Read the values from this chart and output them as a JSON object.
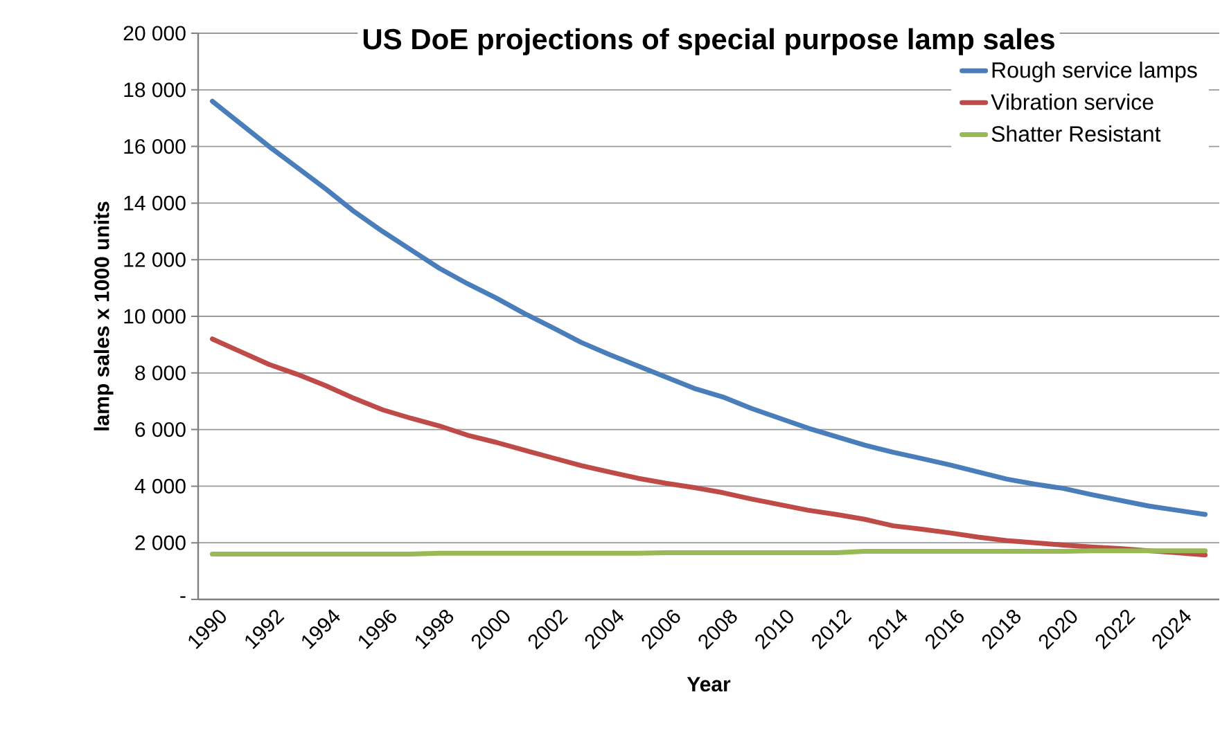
{
  "chart_data": {
    "type": "line",
    "title": "US DoE projections of special purpose lamp sales",
    "xlabel": "Year",
    "ylabel": "lamp sales x 1000 units",
    "categories": [
      "1990",
      null,
      "1992",
      null,
      "1994",
      null,
      "1996",
      null,
      "1998",
      null,
      "2000",
      null,
      "2002",
      null,
      "2004",
      null,
      "2006",
      null,
      "2008",
      null,
      "2010",
      null,
      "2012",
      null,
      "2014",
      null,
      "2016",
      null,
      "2018",
      null,
      "2020",
      null,
      "2022",
      null,
      "2024",
      null
    ],
    "series": [
      {
        "name": "Rough service lamps",
        "color": "#4a7ebb",
        "values": [
          17600,
          16800,
          16000,
          15250,
          14500,
          13700,
          13000,
          12350,
          11700,
          11150,
          10650,
          10100,
          9600,
          9080,
          8650,
          8250,
          7850,
          7450,
          7150,
          6750,
          6400,
          6050,
          5750,
          5450,
          5200,
          4980,
          4750,
          4500,
          4250,
          4070,
          3920,
          3700,
          3500,
          3300,
          3150,
          3000
        ]
      },
      {
        "name": "Vibration service",
        "color": "#be4b48",
        "values": [
          9200,
          8750,
          8300,
          7950,
          7550,
          7100,
          6700,
          6400,
          6130,
          5800,
          5550,
          5270,
          5000,
          4730,
          4500,
          4280,
          4100,
          3950,
          3770,
          3550,
          3350,
          3150,
          3000,
          2830,
          2600,
          2480,
          2350,
          2200,
          2080,
          2000,
          1920,
          1850,
          1800,
          1720,
          1650,
          1570
        ]
      },
      {
        "name": "Shatter Resistant",
        "color": "#98b954",
        "values": [
          1600,
          1600,
          1600,
          1600,
          1600,
          1600,
          1600,
          1600,
          1630,
          1630,
          1630,
          1630,
          1630,
          1630,
          1630,
          1630,
          1650,
          1650,
          1650,
          1650,
          1650,
          1650,
          1650,
          1700,
          1700,
          1700,
          1700,
          1700,
          1700,
          1700,
          1700,
          1720,
          1720,
          1720,
          1720,
          1720
        ]
      }
    ],
    "ylim": [
      0,
      20000
    ],
    "yticks": [
      {
        "value": 0,
        "label": "-"
      },
      {
        "value": 2000,
        "label": "2 000"
      },
      {
        "value": 4000,
        "label": "4 000"
      },
      {
        "value": 6000,
        "label": "6 000"
      },
      {
        "value": 8000,
        "label": "8 000"
      },
      {
        "value": 10000,
        "label": "10 000"
      },
      {
        "value": 12000,
        "label": "12 000"
      },
      {
        "value": 14000,
        "label": "14 000"
      },
      {
        "value": 16000,
        "label": "16 000"
      },
      {
        "value": 18000,
        "label": "18 000"
      },
      {
        "value": 20000,
        "label": "20 000"
      }
    ],
    "grid": "y",
    "legend": "top right",
    "marker": "none",
    "line_style": "solid"
  }
}
